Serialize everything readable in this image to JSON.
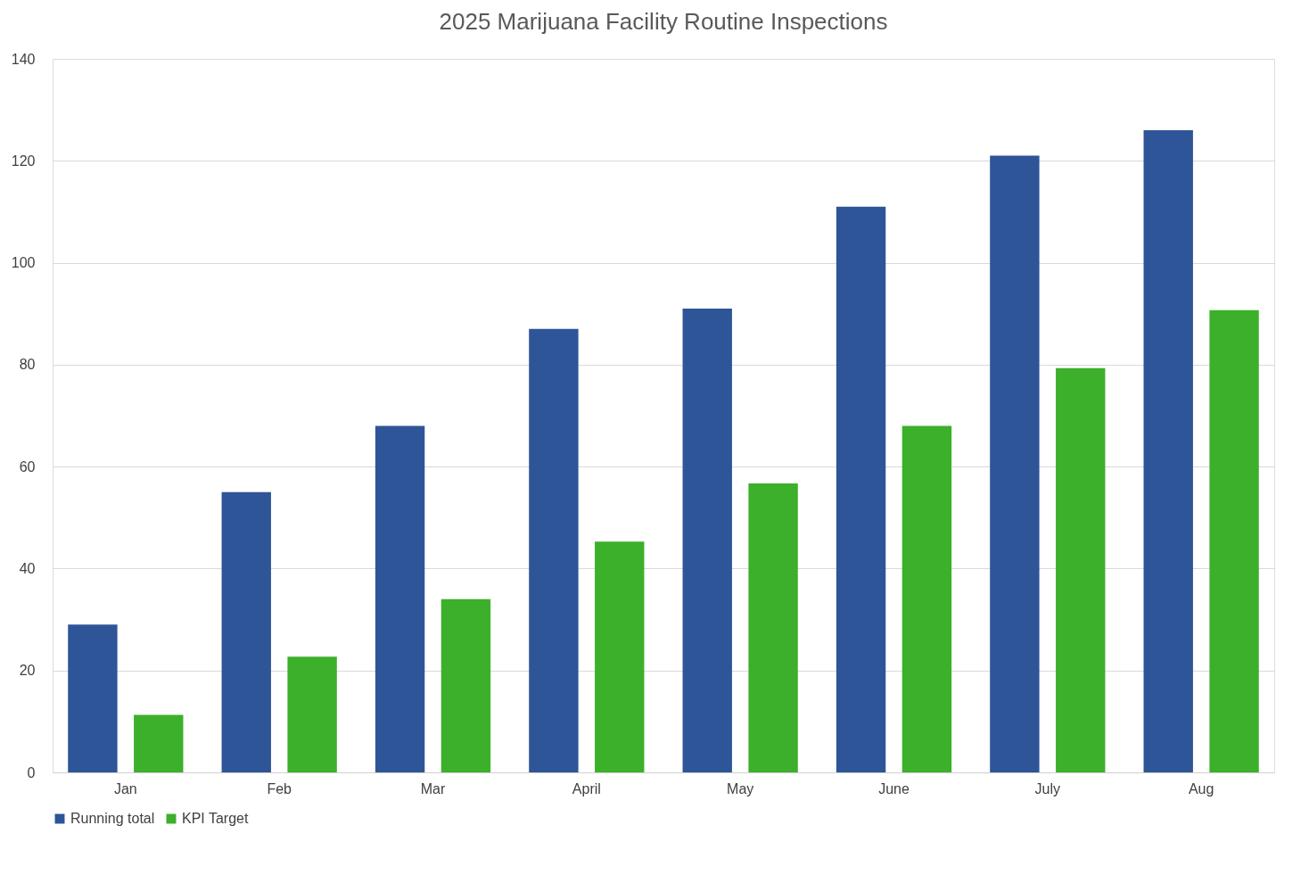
{
  "chart_data": {
    "type": "bar",
    "title": "2025 Marijuana Facility Routine Inspections",
    "categories": [
      "Jan",
      "Feb",
      "Mar",
      "April",
      "May",
      "June",
      "July",
      "Aug"
    ],
    "series": [
      {
        "name": "Running total",
        "color": "#2e5597",
        "values": [
          29,
          55,
          68,
          87,
          91,
          111,
          121,
          126
        ]
      },
      {
        "name": "KPI Target",
        "color": "#3cb02a",
        "values": [
          11.3,
          22.7,
          34,
          45.3,
          56.7,
          68,
          79.3,
          90.7
        ]
      }
    ],
    "ylim": [
      0,
      140
    ],
    "yticks": [
      0,
      20,
      40,
      60,
      80,
      100,
      120,
      140
    ],
    "grid": "y",
    "legend": "bottom"
  }
}
